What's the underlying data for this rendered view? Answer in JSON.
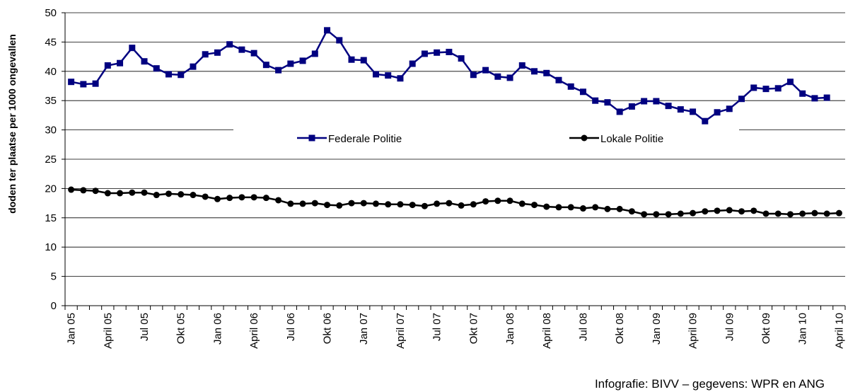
{
  "chart_data": {
    "type": "line",
    "y_label": "doden ter plaatse per 1000 ongevallen",
    "source": "Infografie: BIVV – gegevens: WPR en ANG",
    "categories": [
      "Jan 05",
      null,
      null,
      "April 05",
      null,
      null,
      "Jul 05",
      null,
      null,
      "Okt 05",
      null,
      null,
      "Jan 06",
      null,
      null,
      "April 06",
      null,
      null,
      "Jul 06",
      null,
      null,
      "Okt 06",
      null,
      null,
      "Jan 07",
      null,
      null,
      "April 07",
      null,
      null,
      "Jul 07",
      null,
      null,
      "Okt 07",
      null,
      null,
      "Jan 08",
      null,
      null,
      "April 08",
      null,
      null,
      "Jul 08",
      null,
      null,
      "Okt 08",
      null,
      null,
      "Jan 09",
      null,
      null,
      "April 09",
      null,
      null,
      "Jul 09",
      null,
      null,
      "Okt 09",
      null,
      null,
      "Jan 10",
      null,
      null,
      "April 10"
    ],
    "series": [
      {
        "name": "Federale Politie",
        "color": "#000080",
        "marker": "square",
        "values": [
          38.2,
          37.8,
          37.9,
          41,
          41.4,
          44,
          41.7,
          40.5,
          39.5,
          39.4,
          40.8,
          42.9,
          43.2,
          44.6,
          43.7,
          43.1,
          41.1,
          40.2,
          41.3,
          41.8,
          43,
          47,
          45.3,
          42,
          41.9,
          39.5,
          39.3,
          38.8,
          41.3,
          43,
          43.2,
          43.3,
          42.2,
          39.4,
          40.2,
          39.1,
          38.9,
          41,
          40,
          39.7,
          38.5,
          37.4,
          36.5,
          35,
          34.7,
          33.1,
          34,
          34.9,
          34.9,
          34.1,
          33.5,
          33.1,
          31.5,
          33,
          33.6,
          35.3,
          37.2,
          37,
          37.1,
          38.2,
          36.2,
          35.4,
          35.5,
          null
        ]
      },
      {
        "name": "Lokale Politie",
        "color": "#000000",
        "marker": "circle",
        "values": [
          19.8,
          19.7,
          19.6,
          19.2,
          19.2,
          19.3,
          19.3,
          18.9,
          19.1,
          19,
          18.9,
          18.6,
          18.2,
          18.4,
          18.5,
          18.5,
          18.4,
          18,
          17.4,
          17.4,
          17.5,
          17.2,
          17.1,
          17.5,
          17.5,
          17.4,
          17.3,
          17.3,
          17.2,
          17,
          17.4,
          17.5,
          17.1,
          17.3,
          17.8,
          17.9,
          17.9,
          17.4,
          17.2,
          16.9,
          16.8,
          16.8,
          16.6,
          16.8,
          16.5,
          16.5,
          16.1,
          15.6,
          15.6,
          15.6,
          15.7,
          15.8,
          16.1,
          16.2,
          16.3,
          16.1,
          16.2,
          15.7,
          15.7,
          15.6,
          15.7,
          15.8,
          15.7,
          15.8
        ]
      }
    ],
    "ylim": [
      0,
      50
    ],
    "yticks": [
      0,
      5,
      10,
      15,
      20,
      25,
      30,
      35,
      40,
      45,
      50
    ],
    "grid": true,
    "legend": "center"
  }
}
